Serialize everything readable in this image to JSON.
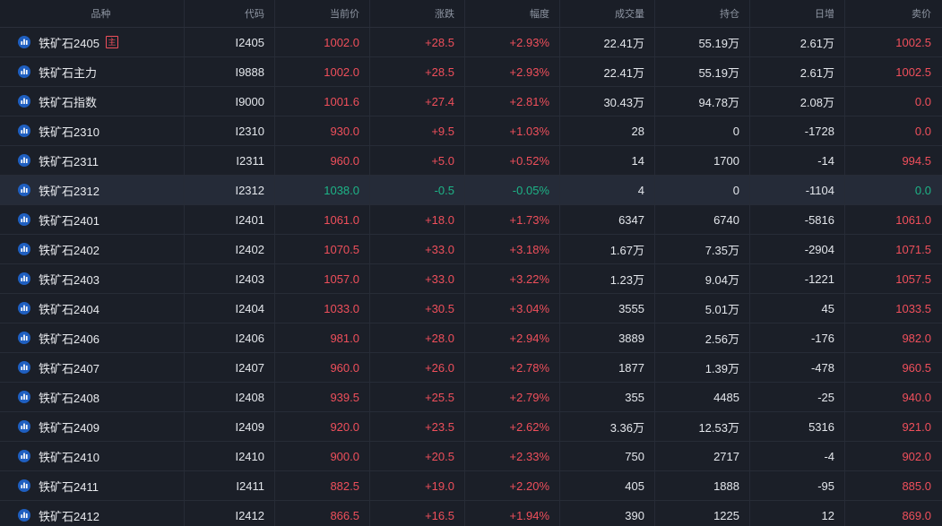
{
  "header": {
    "columns": [
      "品种",
      "代码",
      "当前价",
      "涨跌",
      "幅度",
      "成交量",
      "持仓",
      "日增",
      "卖价"
    ]
  },
  "colors": {
    "up": "#ef4f5b",
    "down": "#1db487",
    "text": "#e3e6eb",
    "header_text": "#8f96a3",
    "background": "#1b1f28",
    "selected_row": "#252b38",
    "row_icon": "#1f5fc0"
  },
  "row_icon": "bar-chart-icon",
  "rows": [
    {
      "name": "铁矿石2405",
      "badge": "主",
      "code": "I2405",
      "price": "1002.0",
      "change": "+28.5",
      "pct": "+2.93%",
      "volume": "22.41万",
      "open_interest": "55.19万",
      "daily_change": "2.61万",
      "ask": "1002.5"
    },
    {
      "name": "铁矿石主力",
      "code": "I9888",
      "price": "1002.0",
      "change": "+28.5",
      "pct": "+2.93%",
      "volume": "22.41万",
      "open_interest": "55.19万",
      "daily_change": "2.61万",
      "ask": "1002.5"
    },
    {
      "name": "铁矿石指数",
      "code": "I9000",
      "price": "1001.6",
      "change": "+27.4",
      "pct": "+2.81%",
      "volume": "30.43万",
      "open_interest": "94.78万",
      "daily_change": "2.08万",
      "ask": "0.0"
    },
    {
      "name": "铁矿石2310",
      "code": "I2310",
      "price": "930.0",
      "change": "+9.5",
      "pct": "+1.03%",
      "volume": "28",
      "open_interest": "0",
      "daily_change": "-1728",
      "ask": "0.0"
    },
    {
      "name": "铁矿石2311",
      "code": "I2311",
      "price": "960.0",
      "change": "+5.0",
      "pct": "+0.52%",
      "volume": "14",
      "open_interest": "1700",
      "daily_change": "-14",
      "ask": "994.5"
    },
    {
      "name": "铁矿石2312",
      "code": "I2312",
      "price": "1038.0",
      "change": "-0.5",
      "pct": "-0.05%",
      "volume": "4",
      "open_interest": "0",
      "daily_change": "-1104",
      "ask": "0.0",
      "selected": true
    },
    {
      "name": "铁矿石2401",
      "code": "I2401",
      "price": "1061.0",
      "change": "+18.0",
      "pct": "+1.73%",
      "volume": "6347",
      "open_interest": "6740",
      "daily_change": "-5816",
      "ask": "1061.0"
    },
    {
      "name": "铁矿石2402",
      "code": "I2402",
      "price": "1070.5",
      "change": "+33.0",
      "pct": "+3.18%",
      "volume": "1.67万",
      "open_interest": "7.35万",
      "daily_change": "-2904",
      "ask": "1071.5"
    },
    {
      "name": "铁矿石2403",
      "code": "I2403",
      "price": "1057.0",
      "change": "+33.0",
      "pct": "+3.22%",
      "volume": "1.23万",
      "open_interest": "9.04万",
      "daily_change": "-1221",
      "ask": "1057.5"
    },
    {
      "name": "铁矿石2404",
      "code": "I2404",
      "price": "1033.0",
      "change": "+30.5",
      "pct": "+3.04%",
      "volume": "3555",
      "open_interest": "5.01万",
      "daily_change": "45",
      "ask": "1033.5"
    },
    {
      "name": "铁矿石2406",
      "code": "I2406",
      "price": "981.0",
      "change": "+28.0",
      "pct": "+2.94%",
      "volume": "3889",
      "open_interest": "2.56万",
      "daily_change": "-176",
      "ask": "982.0"
    },
    {
      "name": "铁矿石2407",
      "code": "I2407",
      "price": "960.0",
      "change": "+26.0",
      "pct": "+2.78%",
      "volume": "1877",
      "open_interest": "1.39万",
      "daily_change": "-478",
      "ask": "960.5"
    },
    {
      "name": "铁矿石2408",
      "code": "I2408",
      "price": "939.5",
      "change": "+25.5",
      "pct": "+2.79%",
      "volume": "355",
      "open_interest": "4485",
      "daily_change": "-25",
      "ask": "940.0"
    },
    {
      "name": "铁矿石2409",
      "code": "I2409",
      "price": "920.0",
      "change": "+23.5",
      "pct": "+2.62%",
      "volume": "3.36万",
      "open_interest": "12.53万",
      "daily_change": "5316",
      "ask": "921.0"
    },
    {
      "name": "铁矿石2410",
      "code": "I2410",
      "price": "900.0",
      "change": "+20.5",
      "pct": "+2.33%",
      "volume": "750",
      "open_interest": "2717",
      "daily_change": "-4",
      "ask": "902.0"
    },
    {
      "name": "铁矿石2411",
      "code": "I2411",
      "price": "882.5",
      "change": "+19.0",
      "pct": "+2.20%",
      "volume": "405",
      "open_interest": "1888",
      "daily_change": "-95",
      "ask": "885.0"
    },
    {
      "name": "铁矿石2412",
      "code": "I2412",
      "price": "866.5",
      "change": "+16.5",
      "pct": "+1.94%",
      "volume": "390",
      "open_interest": "1225",
      "daily_change": "12",
      "ask": "869.0"
    }
  ]
}
